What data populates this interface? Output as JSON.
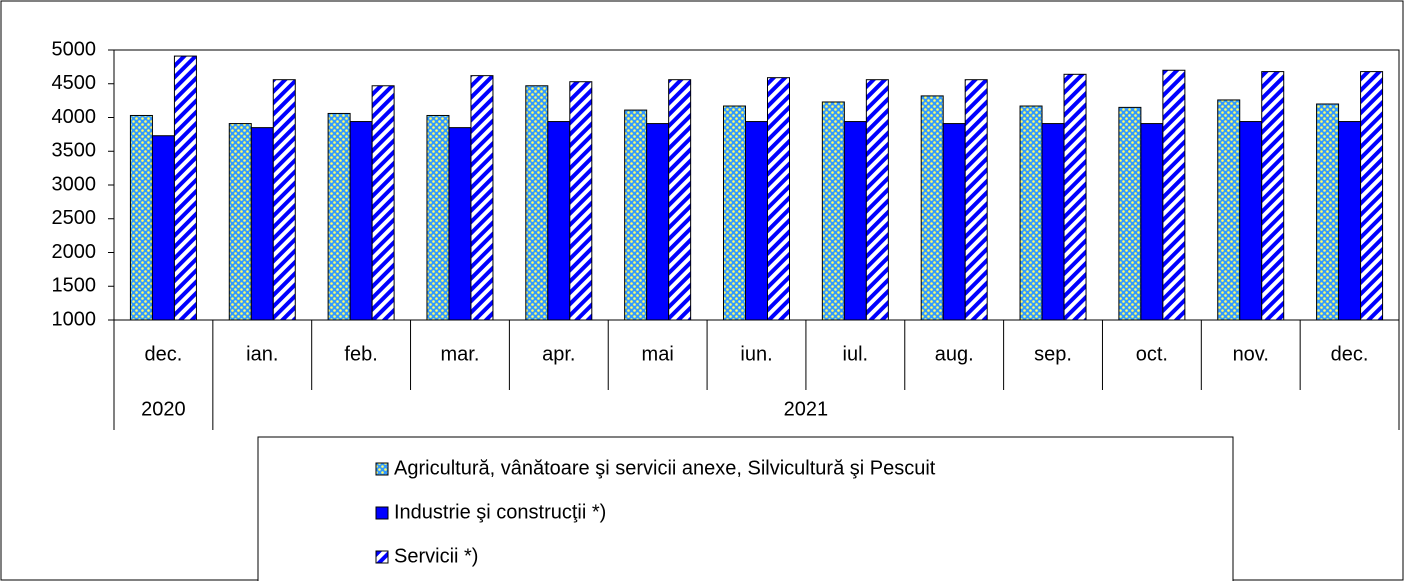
{
  "chart_data": {
    "type": "bar",
    "groups": [
      {
        "label": "2020",
        "categories": [
          "dec."
        ]
      },
      {
        "label": "2021",
        "categories": [
          "ian.",
          "feb.",
          "mar.",
          "apr.",
          "mai",
          "iun.",
          "iul.",
          "aug.",
          "sep.",
          "oct.",
          "nov.",
          "dec."
        ]
      }
    ],
    "series": [
      {
        "name": "Agricultură, vânătoare şi servicii anexe, Silvicultură şi Pescuit",
        "color": "#3399ff",
        "pattern": "dots",
        "values": [
          4030,
          3910,
          4060,
          4030,
          4470,
          4110,
          4170,
          4230,
          4320,
          4170,
          4150,
          4260,
          4200
        ]
      },
      {
        "name": "Industrie şi construcţii *)",
        "color": "#0000ff",
        "pattern": "solid",
        "values": [
          3730,
          3850,
          3940,
          3850,
          3940,
          3910,
          3940,
          3940,
          3910,
          3910,
          3910,
          3940,
          3940
        ]
      },
      {
        "name": "Servicii *)",
        "color": "#0000ff",
        "pattern": "stripes",
        "values": [
          4910,
          4560,
          4470,
          4620,
          4530,
          4560,
          4590,
          4560,
          4560,
          4640,
          4700,
          4680,
          4680
        ]
      }
    ],
    "ylim": [
      1000,
      5000
    ],
    "yticks": [
      1000,
      1500,
      2000,
      2500,
      3000,
      3500,
      4000,
      4500,
      5000
    ],
    "grid": false,
    "legend": "bottom"
  }
}
